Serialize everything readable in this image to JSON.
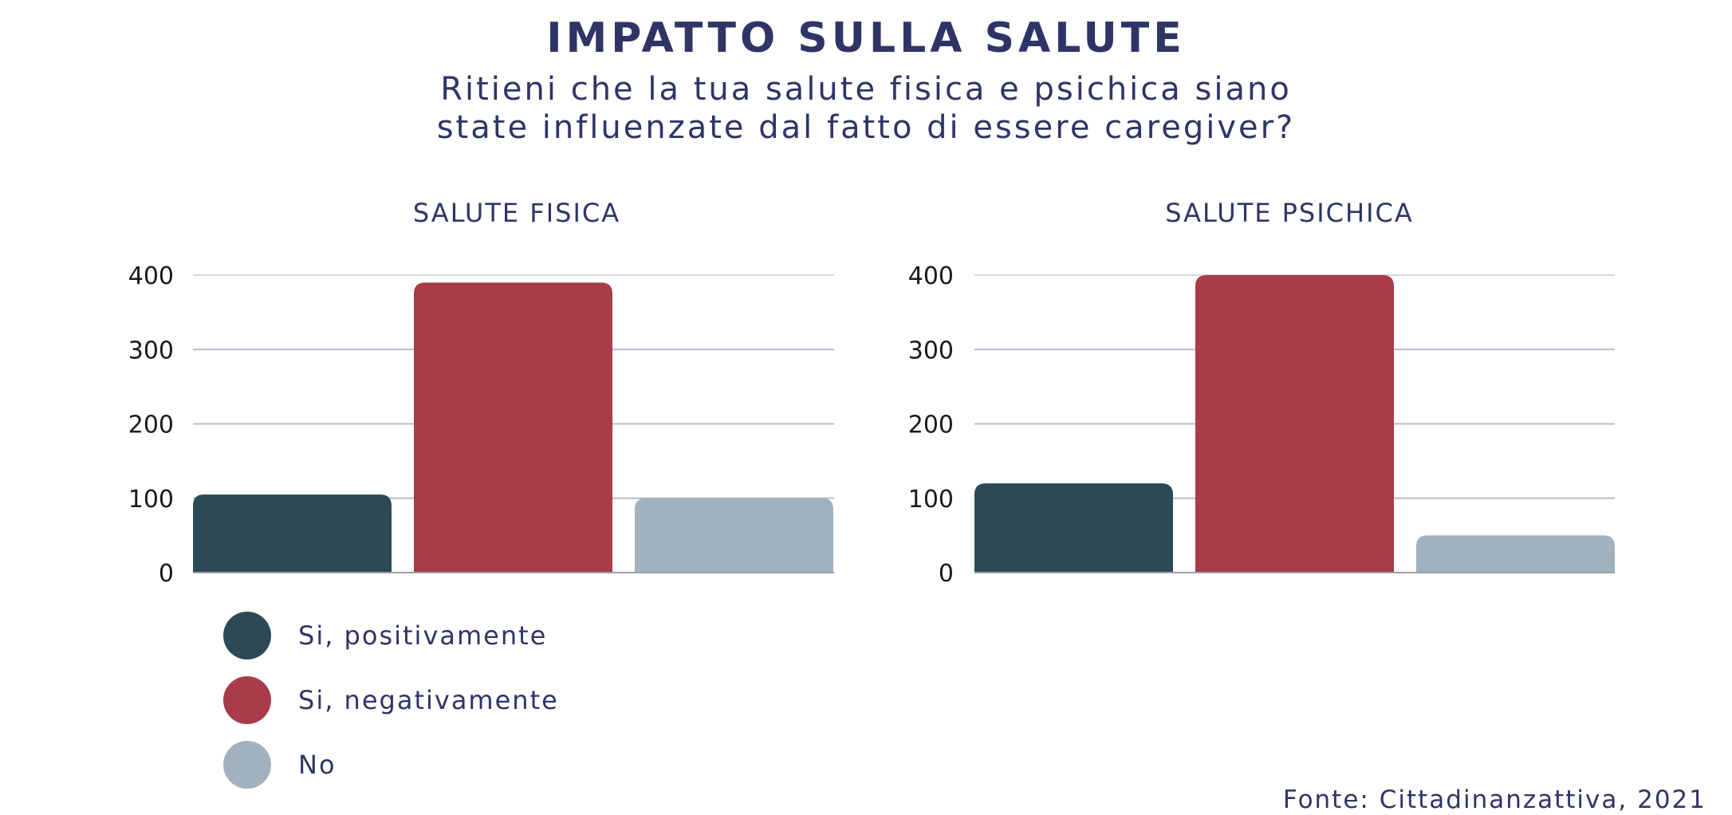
{
  "title": "IMPATTO SULLA SALUTE",
  "subtitle_lines": [
    "Ritieni che la tua salute fisica e psichica siano",
    "state influenzate dal fatto di essere caregiver?"
  ],
  "source": "Fonte: Cittadinanzattiva, 2021",
  "legend": [
    {
      "label": "Si, positivamente",
      "color": "#2b4a55"
    },
    {
      "label": "Si, negativamente",
      "color": "#a83c49"
    },
    {
      "label": "No",
      "color": "#a1b2be"
    }
  ],
  "chart_data": [
    {
      "type": "bar",
      "title": "SALUTE FISICA",
      "categories": [
        "Si, positivamente",
        "Si, negativamente",
        "No"
      ],
      "values": [
        105,
        390,
        100
      ],
      "ylim": [
        0,
        400
      ],
      "yticks": [
        0,
        100,
        200,
        300,
        400
      ],
      "grid": true,
      "colors": [
        "#2b4a55",
        "#a83c49",
        "#a1b2be"
      ]
    },
    {
      "type": "bar",
      "title": "SALUTE PSICHICA",
      "categories": [
        "Si, positivamente",
        "Si, negativamente",
        "No"
      ],
      "values": [
        120,
        400,
        50
      ],
      "ylim": [
        0,
        400
      ],
      "yticks": [
        0,
        100,
        200,
        300,
        400
      ],
      "grid": true,
      "colors": [
        "#2b4a55",
        "#a83c49",
        "#a1b2be"
      ]
    }
  ]
}
